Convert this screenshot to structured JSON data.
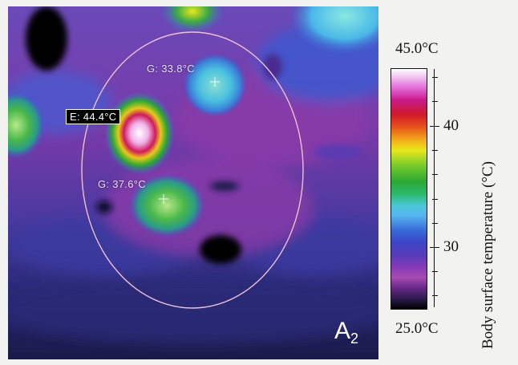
{
  "image": {
    "panel_label": "A",
    "panel_subscript": "2"
  },
  "markers": [
    {
      "id": "E",
      "text": "E: 44.4°C",
      "style": "boxed"
    },
    {
      "id": "G1",
      "text": "G: 33.8°C",
      "style": "plain"
    },
    {
      "id": "G2",
      "text": "G: 37.6°C",
      "style": "plain"
    }
  ],
  "color_scale": {
    "max_label": "45.0°C",
    "min_label": "25.0°C",
    "tick_labels": [
      "40",
      "30"
    ],
    "title": "Body surface temperature (°C)",
    "colors": [
      "#ffffff",
      "#e36ad8",
      "#d01a2a",
      "#f2b21a",
      "#e8e81a",
      "#2aa834",
      "#4ac8d8",
      "#3a6ed8",
      "#8a3ab8",
      "#000000"
    ]
  }
}
